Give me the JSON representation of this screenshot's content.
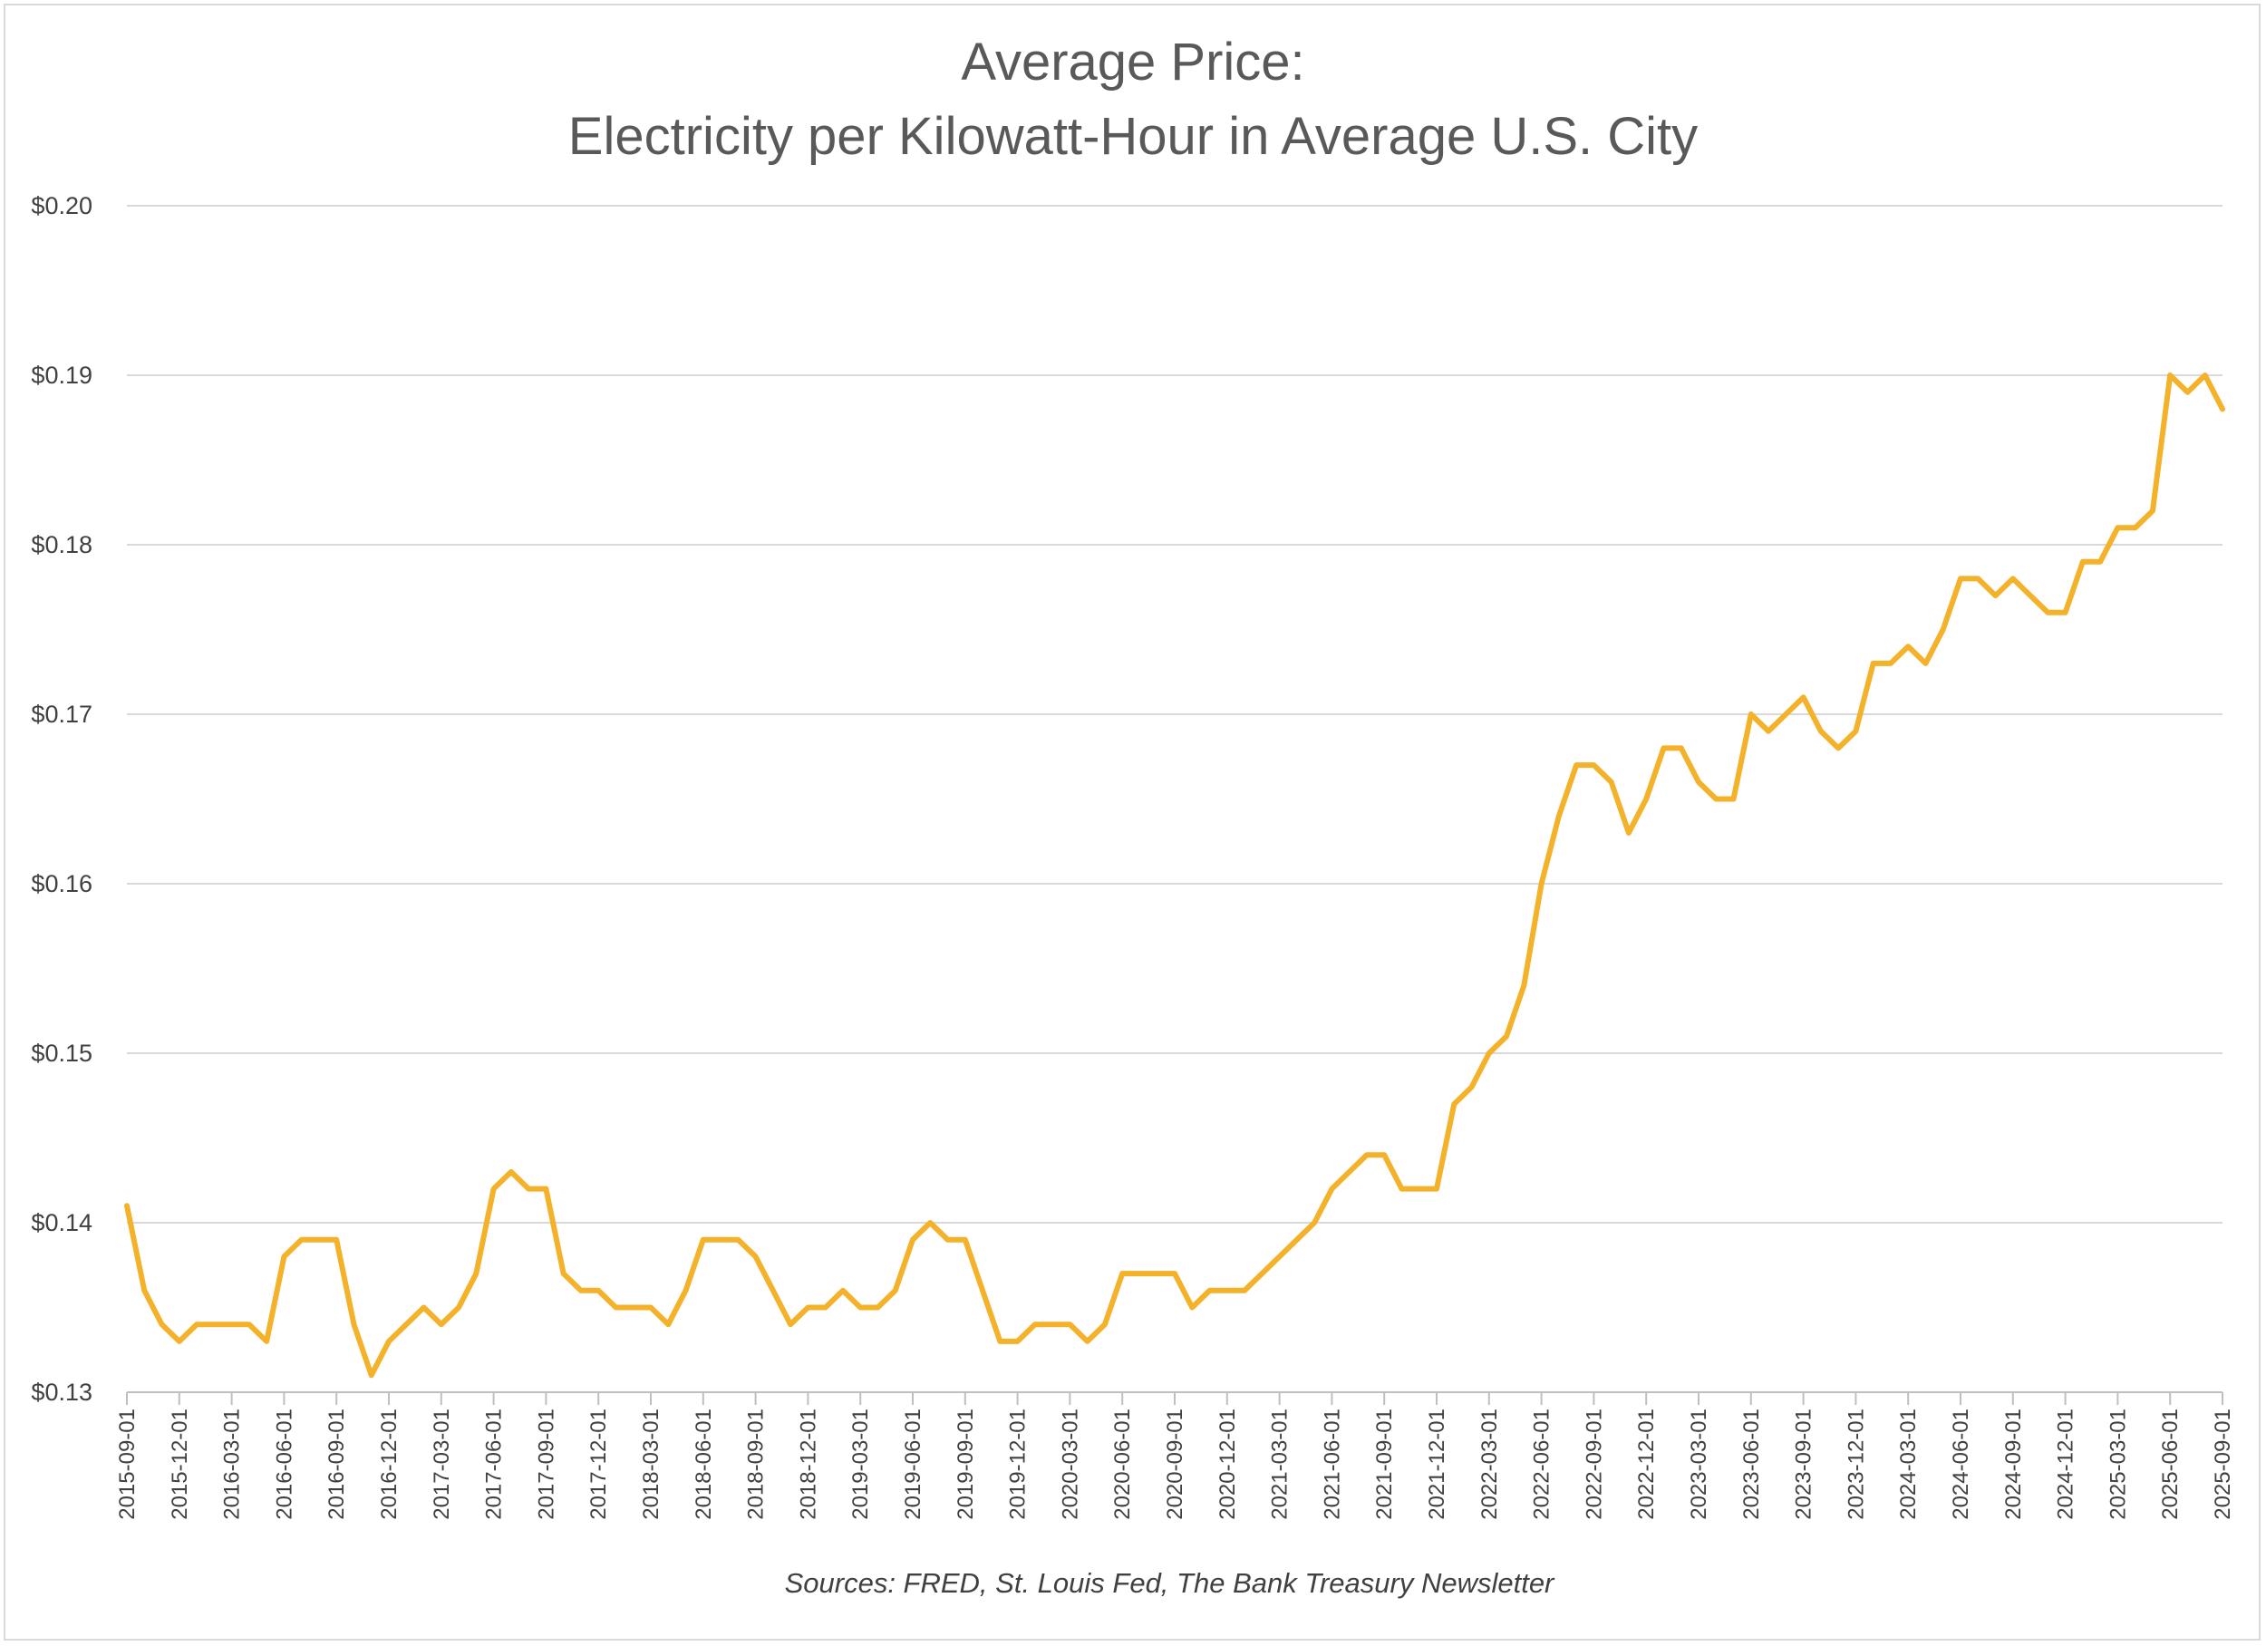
{
  "chart_data": {
    "type": "line",
    "title": [
      "Average Price:",
      "Electricity per Kilowatt-Hour in Average U.S. City"
    ],
    "xlabel": "",
    "ylabel": "",
    "ylim": [
      0.13,
      0.2
    ],
    "yticks": [
      0.13,
      0.14,
      0.15,
      0.16,
      0.17,
      0.18,
      0.19,
      0.2
    ],
    "ytick_labels": [
      "$0.13",
      "$0.14",
      "$0.15",
      "$0.16",
      "$0.17",
      "$0.18",
      "$0.19",
      "$0.20"
    ],
    "grid": true,
    "x_tick_every": 3,
    "x": [
      "2015-09-01",
      "2015-10-01",
      "2015-11-01",
      "2015-12-01",
      "2016-01-01",
      "2016-02-01",
      "2016-03-01",
      "2016-04-01",
      "2016-05-01",
      "2016-06-01",
      "2016-07-01",
      "2016-08-01",
      "2016-09-01",
      "2016-10-01",
      "2016-11-01",
      "2016-12-01",
      "2017-01-01",
      "2017-02-01",
      "2017-03-01",
      "2017-04-01",
      "2017-05-01",
      "2017-06-01",
      "2017-07-01",
      "2017-08-01",
      "2017-09-01",
      "2017-10-01",
      "2017-11-01",
      "2017-12-01",
      "2018-01-01",
      "2018-02-01",
      "2018-03-01",
      "2018-04-01",
      "2018-05-01",
      "2018-06-01",
      "2018-07-01",
      "2018-08-01",
      "2018-09-01",
      "2018-10-01",
      "2018-11-01",
      "2018-12-01",
      "2019-01-01",
      "2019-02-01",
      "2019-03-01",
      "2019-04-01",
      "2019-05-01",
      "2019-06-01",
      "2019-07-01",
      "2019-08-01",
      "2019-09-01",
      "2019-10-01",
      "2019-11-01",
      "2019-12-01",
      "2020-01-01",
      "2020-02-01",
      "2020-03-01",
      "2020-04-01",
      "2020-05-01",
      "2020-06-01",
      "2020-07-01",
      "2020-08-01",
      "2020-09-01",
      "2020-10-01",
      "2020-11-01",
      "2020-12-01",
      "2021-01-01",
      "2021-02-01",
      "2021-03-01",
      "2021-04-01",
      "2021-05-01",
      "2021-06-01",
      "2021-07-01",
      "2021-08-01",
      "2021-09-01",
      "2021-10-01",
      "2021-11-01",
      "2021-12-01",
      "2022-01-01",
      "2022-02-01",
      "2022-03-01",
      "2022-04-01",
      "2022-05-01",
      "2022-06-01",
      "2022-07-01",
      "2022-08-01",
      "2022-09-01",
      "2022-10-01",
      "2022-11-01",
      "2022-12-01",
      "2023-01-01",
      "2023-02-01",
      "2023-03-01",
      "2023-04-01",
      "2023-05-01",
      "2023-06-01",
      "2023-07-01",
      "2023-08-01",
      "2023-09-01",
      "2023-10-01",
      "2023-11-01",
      "2023-12-01",
      "2024-01-01",
      "2024-02-01",
      "2024-03-01",
      "2024-04-01",
      "2024-05-01",
      "2024-06-01",
      "2024-07-01",
      "2024-08-01",
      "2024-09-01",
      "2024-10-01",
      "2024-11-01",
      "2024-12-01",
      "2025-01-01",
      "2025-02-01",
      "2025-03-01",
      "2025-04-01",
      "2025-05-01",
      "2025-06-01",
      "2025-07-01",
      "2025-08-01",
      "2025-09-01"
    ],
    "series": [
      {
        "name": "Electricity per Kilowatt-Hour",
        "color": "#F4B12A",
        "values": [
          0.141,
          0.136,
          0.134,
          0.133,
          0.134,
          0.134,
          0.134,
          0.134,
          0.133,
          0.138,
          0.139,
          0.139,
          0.139,
          0.134,
          0.131,
          0.133,
          0.134,
          0.135,
          0.134,
          0.135,
          0.137,
          0.142,
          0.143,
          0.142,
          0.142,
          0.137,
          0.136,
          0.136,
          0.135,
          0.135,
          0.135,
          0.134,
          0.136,
          0.139,
          0.139,
          0.139,
          0.138,
          0.136,
          0.134,
          0.135,
          0.135,
          0.136,
          0.135,
          0.135,
          0.136,
          0.139,
          0.14,
          0.139,
          0.139,
          0.136,
          0.133,
          0.133,
          0.134,
          0.134,
          0.134,
          0.133,
          0.134,
          0.137,
          0.137,
          0.137,
          0.137,
          0.135,
          0.136,
          0.136,
          0.136,
          0.137,
          0.138,
          0.139,
          0.14,
          0.142,
          0.143,
          0.144,
          0.144,
          0.142,
          0.142,
          0.142,
          0.147,
          0.148,
          0.15,
          0.151,
          0.154,
          0.16,
          0.164,
          0.167,
          0.167,
          0.166,
          0.163,
          0.165,
          0.168,
          0.168,
          0.166,
          0.165,
          0.165,
          0.17,
          0.169,
          0.17,
          0.171,
          0.169,
          0.168,
          0.169,
          0.173,
          0.173,
          0.174,
          0.173,
          0.175,
          0.178,
          0.178,
          0.177,
          0.178,
          0.177,
          0.176,
          0.176,
          0.179,
          0.179,
          0.181,
          0.181,
          0.182,
          0.19,
          0.189,
          0.19,
          0.188
        ]
      }
    ]
  },
  "source_note": "Sources: FRED, St. Louis Fed, The Bank Treasury Newsletter"
}
